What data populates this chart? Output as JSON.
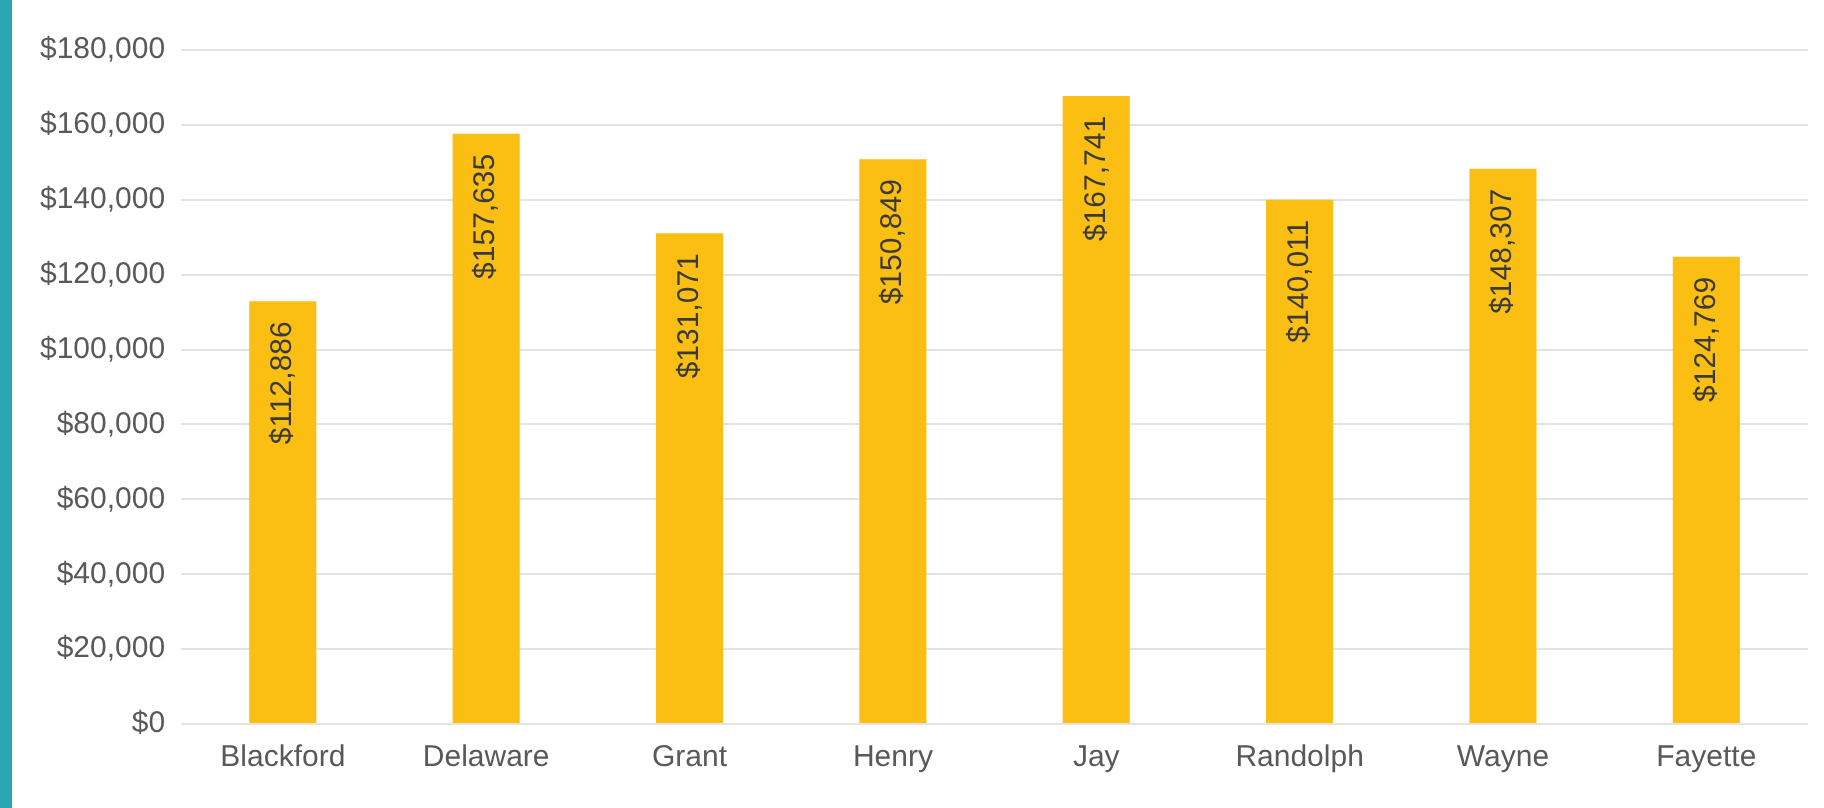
{
  "chart_data": {
    "type": "bar",
    "categories": [
      "Blackford",
      "Delaware",
      "Grant",
      "Henry",
      "Jay",
      "Randolph",
      "Wayne",
      "Fayette"
    ],
    "values": [
      112886,
      157635,
      131071,
      150849,
      167741,
      140011,
      148307,
      124769
    ],
    "value_labels": [
      "$112,886",
      "$157,635",
      "$131,071",
      "$150,849",
      "$167,741",
      "$140,011",
      "$148,307",
      "$124,769"
    ],
    "color": "#fbbf14",
    "ylim": [
      0,
      180000
    ],
    "yticks": [
      {
        "value": 0,
        "label": "$0"
      },
      {
        "value": 20000,
        "label": "$20,000"
      },
      {
        "value": 40000,
        "label": "$40,000"
      },
      {
        "value": 60000,
        "label": "$60,000"
      },
      {
        "value": 80000,
        "label": "$80,000"
      },
      {
        "value": 100000,
        "label": "$100,000"
      },
      {
        "value": 120000,
        "label": "$120,000"
      },
      {
        "value": 140000,
        "label": "$140,000"
      },
      {
        "value": 160000,
        "label": "$160,000"
      },
      {
        "value": 180000,
        "label": "$180,000"
      }
    ],
    "grid": "y"
  }
}
